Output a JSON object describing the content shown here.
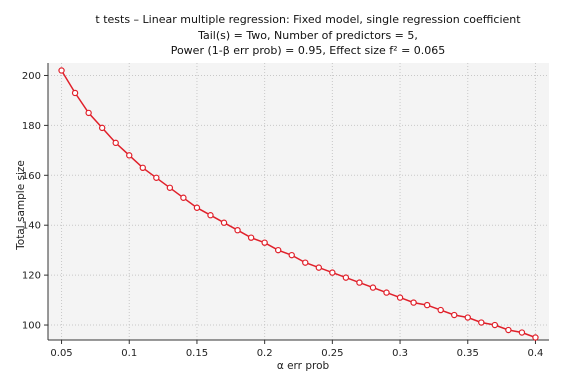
{
  "chart_data": {
    "type": "line",
    "title": [
      "t tests – Linear multiple regression: Fixed model, single regression coefficient",
      "Tail(s) = Two, Number of predictors = 5,",
      "Power (1-β err prob) = 0.95, Effect size f² = 0.065"
    ],
    "xlabel": "α err prob",
    "ylabel": "Total sample size",
    "xlim": [
      0.04,
      0.41
    ],
    "ylim": [
      94,
      205
    ],
    "x_ticks": [
      0.05,
      0.1,
      0.15,
      0.2,
      0.25,
      0.3,
      0.35,
      0.4
    ],
    "x_tick_labels": [
      "0.05",
      "0.1",
      "0.15",
      "0.2",
      "0.25",
      "0.3",
      "0.35",
      "0.4"
    ],
    "y_ticks": [
      100,
      120,
      140,
      160,
      180,
      200
    ],
    "y_tick_labels": [
      "100",
      "120",
      "140",
      "160",
      "180",
      "200"
    ],
    "grid": true,
    "series": [
      {
        "color": "#e0202a",
        "x": [
          0.05,
          0.06,
          0.07,
          0.08,
          0.09,
          0.1,
          0.11,
          0.12,
          0.13,
          0.14,
          0.15,
          0.16,
          0.17,
          0.18,
          0.19,
          0.2,
          0.21,
          0.22,
          0.23,
          0.24,
          0.25,
          0.26,
          0.27,
          0.28,
          0.29,
          0.3,
          0.31,
          0.32,
          0.33,
          0.34,
          0.35,
          0.36,
          0.37,
          0.38,
          0.39,
          0.4
        ],
        "y": [
          202,
          193,
          185,
          179,
          173,
          168,
          163,
          159,
          155,
          151,
          147,
          144,
          141,
          138,
          135,
          133,
          130,
          128,
          125,
          123,
          121,
          119,
          117,
          115,
          113,
          111,
          109,
          108,
          106,
          104,
          103,
          101,
          100,
          98,
          97,
          95
        ]
      }
    ],
    "background_color": "#f4f4f4",
    "grid_color": "#c8c8c8"
  }
}
